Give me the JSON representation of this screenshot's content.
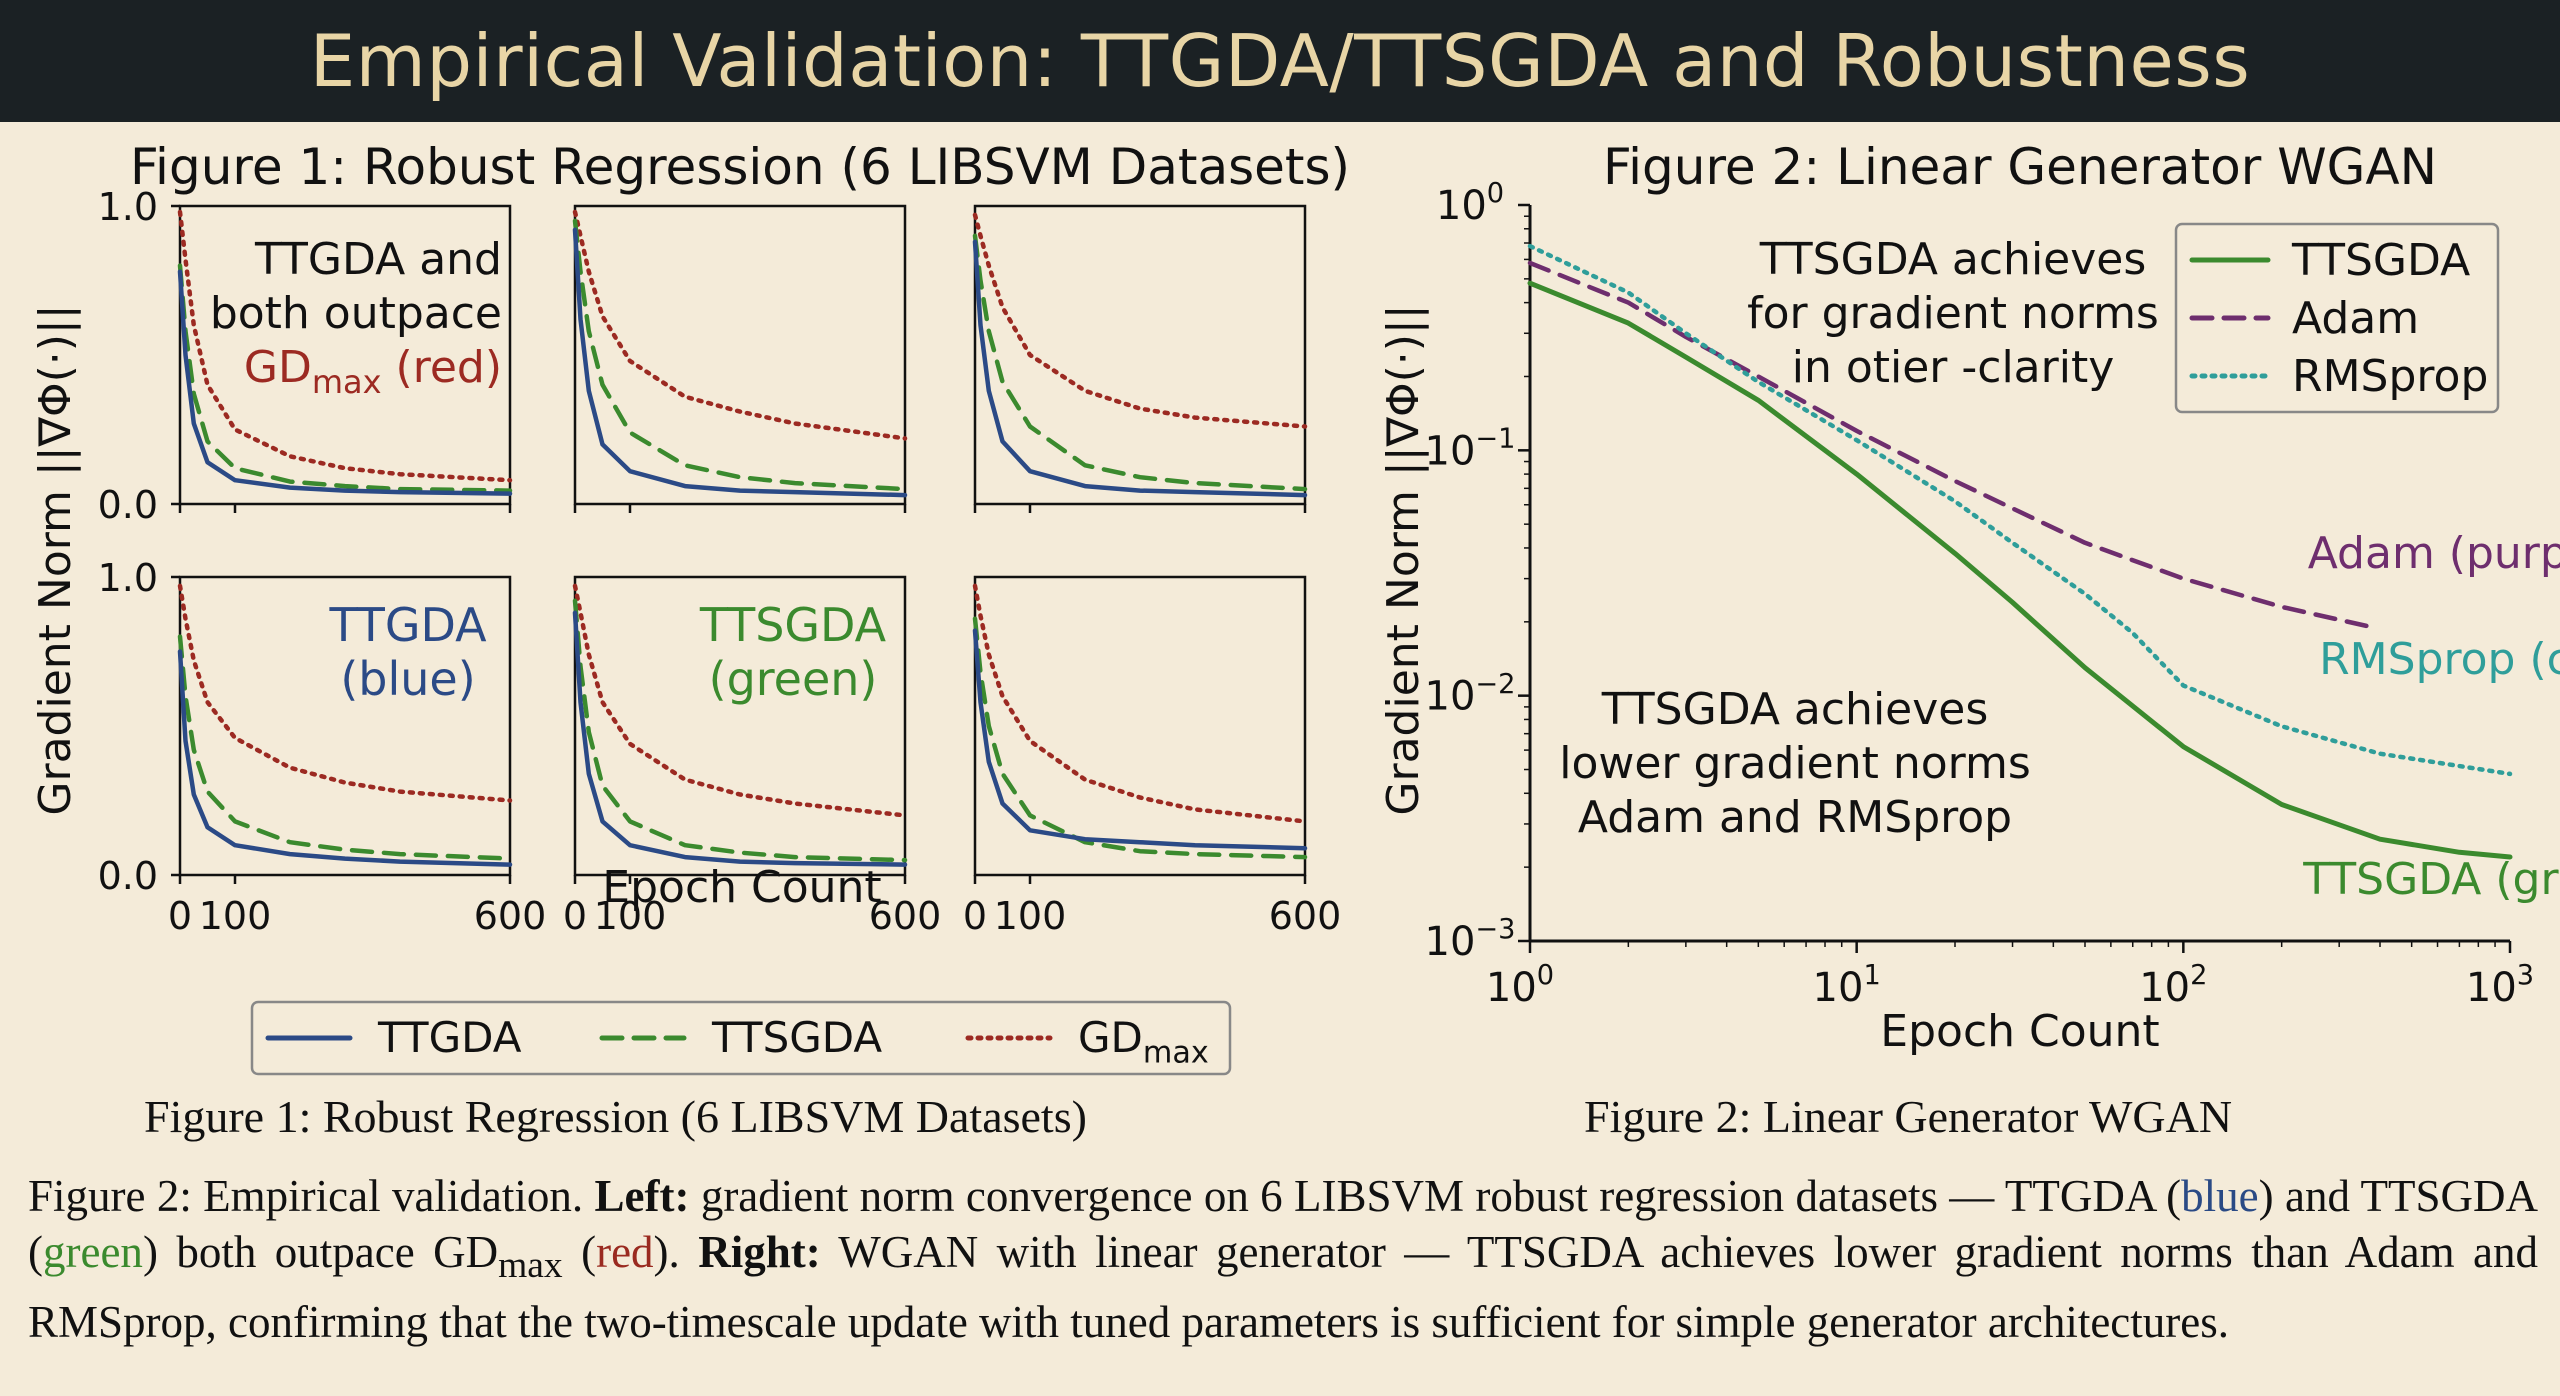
{
  "banner_title": "Empirical Validation: TTGDA/TTSGDA and Robustness",
  "colors": {
    "ttgda": "#2b4a86",
    "ttsgda": "#3b8a2e",
    "gdmax": "#9c2a22",
    "adam": "#6e2e6e",
    "rmsprop": "#2f9e9a"
  },
  "chart_data": [
    {
      "type": "line",
      "title": "Figure 1: Robust Regression (6 LIBSVM Datasets)",
      "xlabel": "Epoch Count",
      "ylabel": "Gradient Norm ||∇Φ(·)||",
      "xlim": [
        0,
        600
      ],
      "ylim": [
        0,
        1.0
      ],
      "x_ticks": [
        "0",
        "100",
        "600"
      ],
      "y_ticks": [
        "0.0",
        "1.0"
      ],
      "grid": false,
      "legend": {
        "placement": "bottom",
        "entries": [
          {
            "label": "TTGDA",
            "style": "solid"
          },
          {
            "label": "TTSGDA",
            "style": "dashed"
          },
          {
            "label": "GD",
            "sub": "max",
            "style": "dotted"
          }
        ]
      },
      "panels": [
        {
          "annotation": [
            "TTGDA and",
            "both outpace"
          ],
          "annotation_red": "GD",
          "annotation_red_sub": "max",
          "annotation_red_tail": " (red)",
          "series": [
            {
              "key": "ttgda",
              "x": [
                0,
                10,
                25,
                50,
                100,
                200,
                300,
                400,
                600
              ],
              "y": [
                0.78,
                0.5,
                0.27,
                0.14,
                0.08,
                0.055,
                0.045,
                0.04,
                0.035
              ]
            },
            {
              "key": "ttsgda",
              "x": [
                0,
                10,
                25,
                50,
                100,
                200,
                300,
                400,
                600
              ],
              "y": [
                0.8,
                0.58,
                0.37,
                0.21,
                0.12,
                0.075,
                0.06,
                0.05,
                0.045
              ]
            },
            {
              "key": "gdmax",
              "x": [
                0,
                10,
                25,
                50,
                100,
                200,
                300,
                400,
                600
              ],
              "y": [
                0.98,
                0.82,
                0.6,
                0.4,
                0.25,
                0.16,
                0.12,
                0.1,
                0.08
              ]
            }
          ]
        },
        {
          "series": [
            {
              "key": "ttgda",
              "x": [
                0,
                10,
                25,
                50,
                100,
                200,
                300,
                400,
                600
              ],
              "y": [
                0.92,
                0.62,
                0.38,
                0.2,
                0.11,
                0.06,
                0.045,
                0.04,
                0.03
              ]
            },
            {
              "key": "ttsgda",
              "x": [
                0,
                10,
                25,
                50,
                100,
                200,
                300,
                400,
                600
              ],
              "y": [
                0.95,
                0.78,
                0.58,
                0.4,
                0.24,
                0.13,
                0.09,
                0.07,
                0.05
              ]
            },
            {
              "key": "gdmax",
              "x": [
                0,
                10,
                25,
                50,
                100,
                200,
                300,
                400,
                600
              ],
              "y": [
                0.98,
                0.9,
                0.78,
                0.63,
                0.48,
                0.36,
                0.31,
                0.27,
                0.22
              ]
            }
          ]
        },
        {
          "series": [
            {
              "key": "ttgda",
              "x": [
                0,
                10,
                25,
                50,
                100,
                200,
                300,
                400,
                600
              ],
              "y": [
                0.88,
                0.6,
                0.38,
                0.21,
                0.11,
                0.06,
                0.045,
                0.04,
                0.03
              ]
            },
            {
              "key": "ttsgda",
              "x": [
                0,
                10,
                25,
                50,
                100,
                200,
                300,
                400,
                600
              ],
              "y": [
                0.9,
                0.75,
                0.58,
                0.41,
                0.26,
                0.13,
                0.09,
                0.07,
                0.05
              ]
            },
            {
              "key": "gdmax",
              "x": [
                0,
                10,
                25,
                50,
                100,
                200,
                300,
                400,
                600
              ],
              "y": [
                0.97,
                0.9,
                0.8,
                0.66,
                0.5,
                0.38,
                0.32,
                0.29,
                0.26
              ]
            }
          ]
        },
        {
          "annotation_blue": [
            "TTGDA",
            "(blue)"
          ],
          "series": [
            {
              "key": "ttgda",
              "x": [
                0,
                10,
                25,
                50,
                100,
                200,
                300,
                400,
                600
              ],
              "y": [
                0.75,
                0.45,
                0.27,
                0.16,
                0.1,
                0.07,
                0.055,
                0.045,
                0.035
              ]
            },
            {
              "key": "ttsgda",
              "x": [
                0,
                10,
                25,
                50,
                100,
                200,
                300,
                400,
                600
              ],
              "y": [
                0.8,
                0.6,
                0.42,
                0.28,
                0.18,
                0.11,
                0.085,
                0.07,
                0.055
              ]
            },
            {
              "key": "gdmax",
              "x": [
                0,
                10,
                25,
                50,
                100,
                200,
                300,
                400,
                600
              ],
              "y": [
                0.97,
                0.86,
                0.72,
                0.58,
                0.46,
                0.36,
                0.31,
                0.28,
                0.25
              ]
            }
          ]
        },
        {
          "annotation_green": [
            "TTSGDA",
            "(green)"
          ],
          "series": [
            {
              "key": "ttgda",
              "x": [
                0,
                10,
                25,
                50,
                100,
                200,
                300,
                400,
                600
              ],
              "y": [
                0.88,
                0.58,
                0.34,
                0.18,
                0.1,
                0.06,
                0.045,
                0.04,
                0.035
              ]
            },
            {
              "key": "ttsgda",
              "x": [
                0,
                10,
                25,
                50,
                100,
                200,
                300,
                400,
                600
              ],
              "y": [
                0.92,
                0.7,
                0.48,
                0.3,
                0.18,
                0.1,
                0.075,
                0.06,
                0.05
              ]
            },
            {
              "key": "gdmax",
              "x": [
                0,
                10,
                25,
                50,
                100,
                200,
                300,
                400,
                600
              ],
              "y": [
                0.97,
                0.88,
                0.74,
                0.58,
                0.44,
                0.32,
                0.27,
                0.24,
                0.2
              ]
            }
          ]
        },
        {
          "series": [
            {
              "key": "ttgda",
              "x": [
                0,
                10,
                25,
                50,
                100,
                200,
                300,
                400,
                600
              ],
              "y": [
                0.82,
                0.58,
                0.38,
                0.24,
                0.15,
                0.12,
                0.11,
                0.1,
                0.09
              ]
            },
            {
              "key": "ttsgda",
              "x": [
                0,
                10,
                25,
                50,
                100,
                200,
                300,
                400,
                600
              ],
              "y": [
                0.86,
                0.68,
                0.5,
                0.34,
                0.2,
                0.11,
                0.08,
                0.07,
                0.06
              ]
            },
            {
              "key": "gdmax",
              "x": [
                0,
                10,
                25,
                50,
                100,
                200,
                300,
                400,
                600
              ],
              "y": [
                0.97,
                0.87,
                0.74,
                0.6,
                0.45,
                0.32,
                0.26,
                0.22,
                0.18
              ]
            }
          ]
        }
      ]
    },
    {
      "type": "line",
      "title": "Figure 2: Linear Generator WGAN",
      "xlabel": "Epoch Count",
      "ylabel": "Gradient Norm ||∇Φ(·)||",
      "xscale": "log",
      "yscale": "log",
      "xlim": [
        1,
        1000
      ],
      "ylim": [
        0.001,
        1
      ],
      "x_ticks": [
        {
          "base": "10",
          "exp": "0"
        },
        {
          "base": "10",
          "exp": "1"
        },
        {
          "base": "10",
          "exp": "2"
        },
        {
          "base": "10",
          "exp": "3"
        }
      ],
      "y_ticks": [
        {
          "base": "10",
          "exp": "0"
        },
        {
          "base": "10",
          "exp": "−1"
        },
        {
          "base": "10",
          "exp": "−2"
        },
        {
          "base": "10",
          "exp": "−3"
        }
      ],
      "grid": false,
      "legend": {
        "placement": "top-right",
        "entries": [
          {
            "label": "TTSGDA",
            "key": "ttsgda",
            "style": "solid"
          },
          {
            "label": "Adam",
            "key": "adam",
            "style": "dashed"
          },
          {
            "label": "RMSprop",
            "key": "rmsprop",
            "style": "dotted"
          }
        ]
      },
      "annotations": {
        "top": [
          "TTSGDA achieves",
          "for gradient norms",
          "in otier -clarity"
        ],
        "middle": [
          "TTSGDA achieves",
          "lower gradient norms",
          "Adam and RMSprop"
        ],
        "adam": "Adam (purple)",
        "rmsprop": "RMSprop (cyan)",
        "ttsgda": "TTSGDA (green)"
      },
      "series": [
        {
          "name": "TTSGDA",
          "key": "ttsgda",
          "style": "solid",
          "x": [
            1,
            2,
            3,
            5,
            10,
            20,
            30,
            50,
            100,
            200,
            400,
            700,
            1000
          ],
          "y": [
            0.48,
            0.33,
            0.24,
            0.16,
            0.08,
            0.038,
            0.024,
            0.013,
            0.0062,
            0.0036,
            0.0026,
            0.0023,
            0.0022
          ]
        },
        {
          "name": "Adam",
          "key": "adam",
          "style": "dashed",
          "x": [
            1,
            2,
            3,
            5,
            10,
            20,
            30,
            50,
            100,
            200,
            380
          ],
          "y": [
            0.58,
            0.4,
            0.29,
            0.2,
            0.12,
            0.075,
            0.058,
            0.042,
            0.03,
            0.023,
            0.019
          ]
        },
        {
          "name": "RMSprop",
          "key": "rmsprop",
          "style": "dotted",
          "x": [
            1,
            2,
            3,
            5,
            10,
            20,
            30,
            50,
            70,
            100,
            200,
            400,
            1000
          ],
          "y": [
            0.68,
            0.44,
            0.3,
            0.19,
            0.11,
            0.062,
            0.042,
            0.026,
            0.018,
            0.011,
            0.0075,
            0.0058,
            0.0048
          ]
        }
      ]
    }
  ],
  "captions": {
    "fig1": "Figure 1: Robust Regression (6 LIBSVM Datasets)",
    "fig2": "Figure 2: Linear Generator WGAN"
  },
  "main_caption": {
    "p1": "Figure 2: Empirical validation. ",
    "left_label": "Left:",
    "p2": " gradient norm convergence on 6 LIBSVM robust regression datasets — TTGDA (",
    "blue": "blue",
    "p3": ") and TTSGDA (",
    "green": "green",
    "p4": ") both outpace GD",
    "sub": "max",
    "p5": " (",
    "red": "red",
    "p6": "). ",
    "right_label": "Right:",
    "p7": " WGAN with linear generator — TTSGDA achieves lower gradient norms than Adam and RMSprop, confirming that the two-timescale update with tuned parameters is sufficient for simple generator architectures."
  }
}
